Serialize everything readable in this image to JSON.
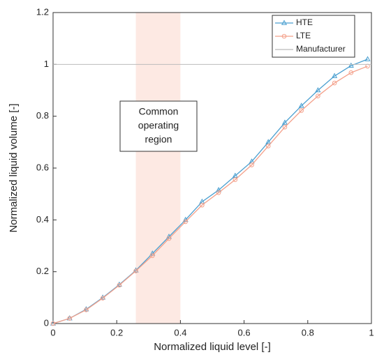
{
  "chart_data": {
    "type": "line",
    "xlabel": "Normalized liquid level [-]",
    "ylabel": "Normalized liquid volume [-]",
    "xlim": [
      0,
      1
    ],
    "ylim": [
      0,
      1.2
    ],
    "xticks": [
      0,
      0.2,
      0.4,
      0.6,
      0.8,
      1
    ],
    "yticks": [
      0,
      0.2,
      0.4,
      0.6,
      0.8,
      1,
      1.2
    ],
    "legend": "upper right",
    "series": [
      {
        "name": "HTE",
        "color": "#4a9fd0",
        "marker": "triangle",
        "x": [
          0,
          0.052,
          0.104,
          0.156,
          0.208,
          0.26,
          0.312,
          0.364,
          0.416,
          0.468,
          0.52,
          0.572,
          0.624,
          0.676,
          0.728,
          0.78,
          0.832,
          0.884,
          0.936,
          0.988
        ],
        "values": [
          0,
          0.02,
          0.055,
          0.1,
          0.15,
          0.205,
          0.27,
          0.335,
          0.4,
          0.47,
          0.515,
          0.57,
          0.625,
          0.7,
          0.775,
          0.84,
          0.9,
          0.955,
          0.995,
          1.02
        ]
      },
      {
        "name": "LTE",
        "color": "#f4a08a",
        "marker": "circle",
        "x": [
          0,
          0.052,
          0.104,
          0.156,
          0.208,
          0.26,
          0.312,
          0.364,
          0.416,
          0.468,
          0.52,
          0.572,
          0.624,
          0.676,
          0.728,
          0.78,
          0.832,
          0.884,
          0.936,
          0.988
        ],
        "values": [
          0,
          0.02,
          0.053,
          0.098,
          0.148,
          0.203,
          0.262,
          0.328,
          0.393,
          0.457,
          0.505,
          0.555,
          0.612,
          0.685,
          0.758,
          0.822,
          0.878,
          0.928,
          0.968,
          0.993
        ]
      },
      {
        "name": "Manufacturer",
        "color": "#bbbbbb",
        "marker": "none",
        "x": [
          0,
          1
        ],
        "values": [
          1,
          1
        ]
      }
    ],
    "shaded_region": {
      "x": [
        0.26,
        0.4
      ],
      "color": "#fde3dc",
      "label": [
        "Common",
        "operating",
        "region"
      ]
    }
  }
}
